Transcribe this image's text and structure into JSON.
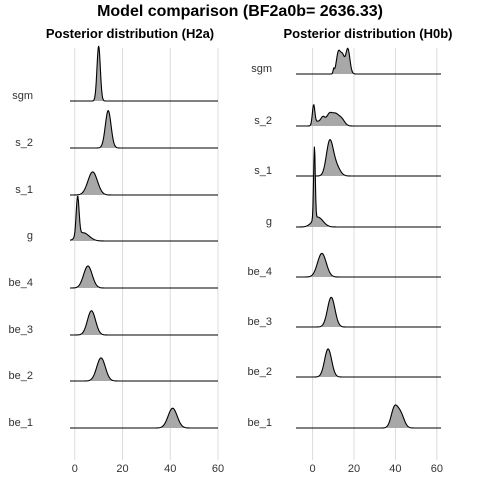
{
  "title": "Model comparison (BF2a0b= 2636.33)",
  "chart_data": [
    {
      "type": "area",
      "subtitle": "Posterior distribution (H2a)",
      "xlim": [
        -2,
        60
      ],
      "xticks": [
        0,
        20,
        40,
        60
      ],
      "grid": true,
      "series": [
        {
          "name": "sgm",
          "peaks": [
            [
              10,
              1.0,
              0.7
            ]
          ]
        },
        {
          "name": "s_2",
          "peaks": [
            [
              14,
              0.68,
              1.2
            ]
          ]
        },
        {
          "name": "s_1",
          "peaks": [
            [
              7.5,
              0.42,
              2.0
            ]
          ]
        },
        {
          "name": "g",
          "peaks": [
            [
              1.2,
              0.72,
              0.6
            ],
            [
              3.5,
              0.15,
              2.5
            ]
          ]
        },
        {
          "name": "be_4",
          "peaks": [
            [
              5.5,
              0.4,
              1.8
            ]
          ]
        },
        {
          "name": "be_3",
          "peaks": [
            [
              7,
              0.44,
              1.7
            ]
          ]
        },
        {
          "name": "be_2",
          "peaks": [
            [
              11,
              0.42,
              1.8
            ]
          ]
        },
        {
          "name": "be_1",
          "peaks": [
            [
              41,
              0.36,
              1.9
            ]
          ]
        }
      ]
    },
    {
      "type": "area",
      "subtitle": "Posterior distribution (H0b)",
      "xlim": [
        -8,
        62
      ],
      "xticks": [
        0,
        20,
        40,
        60
      ],
      "grid": true,
      "series": [
        {
          "name": "sgm",
          "peaks": [
            [
              10.2,
              0.08,
              0.3
            ],
            [
              12.5,
              0.4,
              1.0
            ],
            [
              14.5,
              0.3,
              0.9
            ],
            [
              17,
              0.46,
              1.0
            ]
          ]
        },
        {
          "name": "s_2",
          "peaks": [
            [
              0.5,
              0.36,
              0.6
            ],
            [
              2.5,
              0.08,
              1.4
            ],
            [
              5,
              0.14,
              1.0
            ],
            [
              8,
              0.2,
              1.4
            ],
            [
              11,
              0.2,
              1.6
            ],
            [
              14,
              0.12,
              1.5
            ]
          ]
        },
        {
          "name": "s_1",
          "peaks": [
            [
              8.2,
              0.58,
              1.6
            ],
            [
              11,
              0.2,
              2.0
            ]
          ]
        },
        {
          "name": "g",
          "peaks": [
            [
              0.9,
              1.32,
              0.4
            ],
            [
              2.5,
              0.18,
              2.5
            ]
          ]
        },
        {
          "name": "be_4",
          "peaks": [
            [
              4.5,
              0.43,
              2.1
            ]
          ]
        },
        {
          "name": "be_3",
          "peaks": [
            [
              9,
              0.54,
              1.8
            ]
          ]
        },
        {
          "name": "be_2",
          "peaks": [
            [
              7.5,
              0.51,
              1.7
            ]
          ]
        },
        {
          "name": "be_1",
          "peaks": [
            [
              39.5,
              0.35,
              1.6
            ],
            [
              42.5,
              0.25,
              1.7
            ]
          ]
        }
      ]
    }
  ],
  "colors": {
    "fill": "#a8a8a8",
    "outline": "#000000",
    "grid": "#dcdcdc",
    "baseline": "#000000"
  }
}
